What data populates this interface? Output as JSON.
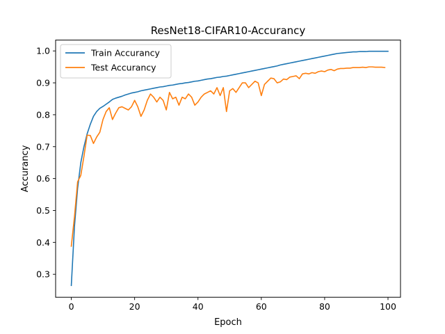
{
  "chart_data": {
    "type": "line",
    "title": "ResNet18-CIFAR10-Accurancy",
    "xlabel": "Epoch",
    "ylabel": "Accurancy",
    "xlim": [
      -4.95,
      103.95
    ],
    "ylim": [
      0.228,
      1.034
    ],
    "xticks": [
      0,
      20,
      40,
      60,
      80,
      100
    ],
    "yticks": [
      0.3,
      0.4,
      0.5,
      0.6,
      0.7,
      0.8,
      0.9,
      1.0
    ],
    "ytick_labels": [
      "0.3",
      "0.4",
      "0.5",
      "0.6",
      "0.7",
      "0.8",
      "0.9",
      "1.0"
    ],
    "grid": false,
    "legend_position": "upper-left",
    "series": [
      {
        "name": "Train Accurancy",
        "color": "#1f77b4",
        "values": [
          0.265,
          0.45,
          0.57,
          0.65,
          0.7,
          0.74,
          0.77,
          0.795,
          0.81,
          0.82,
          0.826,
          0.833,
          0.84,
          0.848,
          0.852,
          0.855,
          0.858,
          0.862,
          0.865,
          0.868,
          0.87,
          0.872,
          0.875,
          0.877,
          0.879,
          0.881,
          0.883,
          0.885,
          0.887,
          0.888,
          0.89,
          0.892,
          0.893,
          0.895,
          0.897,
          0.898,
          0.9,
          0.901,
          0.903,
          0.905,
          0.906,
          0.908,
          0.91,
          0.912,
          0.913,
          0.915,
          0.917,
          0.918,
          0.92,
          0.921,
          0.923,
          0.925,
          0.927,
          0.929,
          0.931,
          0.933,
          0.935,
          0.937,
          0.939,
          0.941,
          0.943,
          0.945,
          0.947,
          0.949,
          0.951,
          0.953,
          0.956,
          0.958,
          0.96,
          0.962,
          0.964,
          0.966,
          0.968,
          0.97,
          0.972,
          0.974,
          0.976,
          0.978,
          0.98,
          0.982,
          0.984,
          0.986,
          0.988,
          0.99,
          0.992,
          0.993,
          0.994,
          0.995,
          0.996,
          0.997,
          0.997,
          0.998,
          0.998,
          0.998,
          0.999,
          0.999,
          0.999,
          0.999,
          0.999,
          0.999,
          0.999
        ]
      },
      {
        "name": "Test Accurancy",
        "color": "#ff7f0e",
        "values": [
          0.388,
          0.48,
          0.59,
          0.61,
          0.67,
          0.736,
          0.735,
          0.71,
          0.73,
          0.745,
          0.785,
          0.81,
          0.822,
          0.785,
          0.805,
          0.822,
          0.825,
          0.82,
          0.815,
          0.825,
          0.845,
          0.825,
          0.795,
          0.815,
          0.845,
          0.865,
          0.855,
          0.84,
          0.855,
          0.845,
          0.815,
          0.87,
          0.85,
          0.855,
          0.83,
          0.855,
          0.85,
          0.865,
          0.855,
          0.83,
          0.84,
          0.855,
          0.865,
          0.87,
          0.875,
          0.865,
          0.885,
          0.86,
          0.885,
          0.81,
          0.875,
          0.882,
          0.87,
          0.885,
          0.9,
          0.9,
          0.885,
          0.895,
          0.905,
          0.9,
          0.86,
          0.895,
          0.905,
          0.915,
          0.913,
          0.9,
          0.903,
          0.912,
          0.91,
          0.918,
          0.92,
          0.922,
          0.913,
          0.928,
          0.93,
          0.928,
          0.932,
          0.93,
          0.935,
          0.937,
          0.935,
          0.94,
          0.942,
          0.938,
          0.943,
          0.945,
          0.945,
          0.946,
          0.946,
          0.948,
          0.948,
          0.948,
          0.949,
          0.948,
          0.95,
          0.95,
          0.949,
          0.949,
          0.949,
          0.948
        ]
      }
    ]
  }
}
